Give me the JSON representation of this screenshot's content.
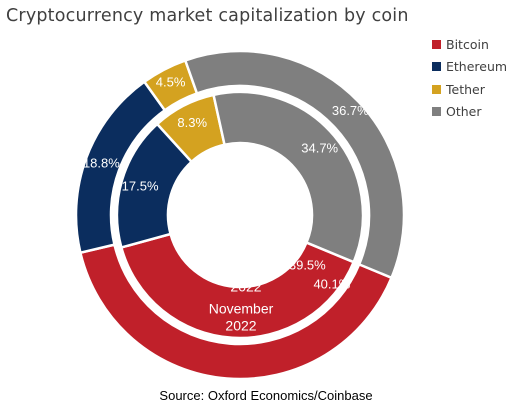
{
  "chart_data": {
    "type": "donut",
    "title": "Cryptocurrency market capitalization by coin",
    "source": "Source: Oxford Economics/Coinbase",
    "categories": [
      "Bitcoin",
      "Ethereum",
      "Tether",
      "Other"
    ],
    "colors": [
      "#c0202a",
      "#0b2d5e",
      "#d4a220",
      "#7f7f7f"
    ],
    "legend_position": "top-right",
    "series": [
      {
        "name": "April 2022",
        "ring": "inner",
        "values": [
          39.5,
          17.5,
          8.3,
          34.7
        ],
        "value_labels": [
          "39.5%",
          "17.5%",
          "8.3%",
          "34.7%"
        ]
      },
      {
        "name": "November 2022",
        "ring": "outer",
        "values": [
          40.1,
          18.8,
          4.5,
          36.7
        ],
        "value_labels": [
          "40.1%",
          "18.8%",
          "4.5%",
          "36.7%"
        ]
      }
    ],
    "series_labels": [
      {
        "series": 0,
        "lines": [
          "April",
          "2022"
        ]
      },
      {
        "series": 1,
        "lines": [
          "November",
          "2022"
        ]
      }
    ]
  }
}
